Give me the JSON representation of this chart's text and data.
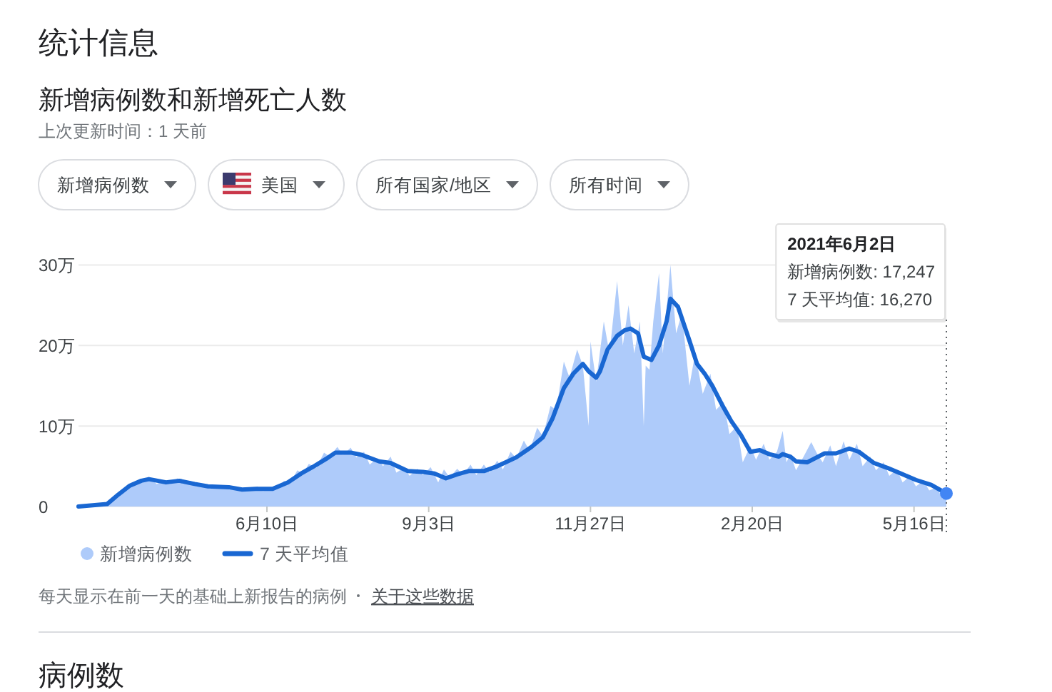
{
  "chart_data": {
    "type": "area",
    "title": "统计信息",
    "subtitle": "新增病例数和新增死亡人数",
    "series": [
      {
        "name": "新增病例数",
        "color": "#aecbfa",
        "x": [
          "2020-03-03",
          "2020-03-15",
          "2020-03-20",
          "2020-03-25",
          "2020-03-30",
          "2020-04-03",
          "2020-04-06",
          "2020-04-10",
          "2020-04-13",
          "2020-04-17",
          "2020-04-20",
          "2020-04-24",
          "2020-04-27",
          "2020-05-01",
          "2020-05-04",
          "2020-05-08",
          "2020-05-11",
          "2020-05-15",
          "2020-05-18",
          "2020-05-22",
          "2020-05-26",
          "2020-05-29",
          "2020-06-01",
          "2020-06-05",
          "2020-06-08",
          "2020-06-12",
          "2020-06-15",
          "2020-06-19",
          "2020-06-22",
          "2020-06-26",
          "2020-06-29",
          "2020-07-02",
          "2020-07-06",
          "2020-07-10",
          "2020-07-13",
          "2020-07-17",
          "2020-07-20",
          "2020-07-24",
          "2020-07-27",
          "2020-07-31",
          "2020-08-03",
          "2020-08-07",
          "2020-08-10",
          "2020-08-14",
          "2020-08-17",
          "2020-08-21",
          "2020-08-24",
          "2020-08-28",
          "2020-08-31",
          "2020-09-04",
          "2020-09-08",
          "2020-09-11",
          "2020-09-14",
          "2020-09-18",
          "2020-09-21",
          "2020-09-25",
          "2020-09-28",
          "2020-10-02",
          "2020-10-05",
          "2020-10-09",
          "2020-10-12",
          "2020-10-16",
          "2020-10-19",
          "2020-10-23",
          "2020-10-26",
          "2020-10-30",
          "2020-11-02",
          "2020-11-06",
          "2020-11-09",
          "2020-11-13",
          "2020-11-16",
          "2020-11-20",
          "2020-11-23",
          "2020-11-26",
          "2020-11-27",
          "2020-11-30",
          "2020-12-04",
          "2020-12-07",
          "2020-12-11",
          "2020-12-14",
          "2020-12-17",
          "2020-12-20",
          "2020-12-23",
          "2020-12-25",
          "2020-12-26",
          "2020-12-28",
          "2020-12-30",
          "2021-01-02",
          "2021-01-04",
          "2021-01-08",
          "2021-01-11",
          "2021-01-14",
          "2021-01-18",
          "2021-01-21",
          "2021-01-25",
          "2021-01-29",
          "2021-02-01",
          "2021-02-05",
          "2021-02-08",
          "2021-02-12",
          "2021-02-15",
          "2021-02-19",
          "2021-02-22",
          "2021-02-26",
          "2021-03-01",
          "2021-03-05",
          "2021-03-08",
          "2021-03-10",
          "2021-03-12",
          "2021-03-15",
          "2021-03-19",
          "2021-03-23",
          "2021-03-26",
          "2021-03-29",
          "2021-04-02",
          "2021-04-05",
          "2021-04-09",
          "2021-04-12",
          "2021-04-16",
          "2021-04-19",
          "2021-04-23",
          "2021-04-26",
          "2021-04-30",
          "2021-05-03",
          "2021-05-07",
          "2021-05-10",
          "2021-05-14",
          "2021-05-17",
          "2021-05-21",
          "2021-05-24",
          "2021-05-28",
          "2021-05-31",
          "2021-06-02"
        ],
        "values": [
          0,
          0.2,
          0.8,
          1.8,
          2.6,
          3.2,
          3.0,
          3.5,
          2.8,
          3.2,
          2.8,
          3.5,
          2.8,
          3.2,
          2.5,
          2.8,
          2.2,
          2.6,
          2.2,
          2.5,
          2.0,
          2.4,
          2.1,
          2.5,
          1.9,
          2.4,
          2.1,
          3.2,
          2.9,
          4.5,
          4.1,
          5.3,
          4.8,
          6.7,
          6.2,
          7.4,
          6.4,
          7.3,
          6.1,
          6.8,
          5.2,
          6.0,
          5.0,
          6.2,
          4.2,
          4.8,
          3.8,
          4.7,
          3.9,
          4.9,
          3.0,
          4.6,
          3.6,
          4.7,
          3.9,
          5.2,
          3.9,
          5.2,
          4.2,
          5.7,
          4.6,
          6.8,
          6.0,
          8.2,
          6.9,
          9.8,
          8.7,
          12.5,
          12.0,
          18.0,
          16.0,
          19.5,
          17.5,
          10.0,
          20.5,
          15.5,
          23.0,
          19.0,
          28.0,
          20.0,
          25.0,
          19.0,
          23.0,
          10.0,
          17.5,
          17.0,
          23.0,
          29.0,
          19.0,
          30.0,
          21.5,
          24.0,
          15.0,
          19.0,
          14.0,
          16.5,
          12.0,
          13.0,
          9.0,
          10.0,
          5.5,
          7.5,
          5.8,
          7.8,
          5.8,
          6.8,
          9.4,
          5.5,
          6.5,
          4.5,
          6.2,
          8.0,
          6.6,
          5.5,
          7.6,
          5.0,
          8.1,
          5.8,
          7.8,
          5.0,
          6.2,
          4.5,
          5.5,
          3.8,
          4.6,
          3.0,
          3.8,
          2.5,
          3.2,
          2.0,
          2.4,
          0.9,
          1.7247
        ]
      },
      {
        "name": "7 天平均值",
        "type": "line",
        "color": "#1967d2",
        "x": [
          "2020-03-03",
          "2020-03-18",
          "2020-03-24",
          "2020-03-30",
          "2020-04-05",
          "2020-04-09",
          "2020-04-18",
          "2020-04-25",
          "2020-05-03",
          "2020-05-10",
          "2020-05-21",
          "2020-05-28",
          "2020-06-04",
          "2020-06-13",
          "2020-06-21",
          "2020-06-28",
          "2020-07-04",
          "2020-07-11",
          "2020-07-16",
          "2020-07-24",
          "2020-07-30",
          "2020-08-08",
          "2020-08-14",
          "2020-08-23",
          "2020-08-31",
          "2020-09-06",
          "2020-09-12",
          "2020-09-18",
          "2020-09-24",
          "2020-10-02",
          "2020-10-09",
          "2020-10-19",
          "2020-10-27",
          "2020-11-02",
          "2020-11-07",
          "2020-11-13",
          "2020-11-18",
          "2020-11-23",
          "2020-11-26",
          "2020-11-30",
          "2020-12-02",
          "2020-12-06",
          "2020-12-11",
          "2020-12-15",
          "2020-12-18",
          "2020-12-22",
          "2020-12-25",
          "2020-12-29",
          "2021-01-02",
          "2021-01-06",
          "2021-01-08",
          "2021-01-12",
          "2021-01-18",
          "2021-01-22",
          "2021-01-26",
          "2021-01-30",
          "2021-02-04",
          "2021-02-09",
          "2021-02-14",
          "2021-02-19",
          "2021-02-24",
          "2021-03-01",
          "2021-03-06",
          "2021-03-08",
          "2021-03-12",
          "2021-03-15",
          "2021-03-21",
          "2021-03-25",
          "2021-03-30",
          "2021-04-05",
          "2021-04-12",
          "2021-04-17",
          "2021-04-25",
          "2021-05-02",
          "2021-05-10",
          "2021-05-17",
          "2021-05-25",
          "2021-06-02"
        ],
        "values": [
          0,
          0.3,
          1.5,
          2.6,
          3.2,
          3.4,
          3.0,
          3.2,
          2.8,
          2.5,
          2.4,
          2.1,
          2.2,
          2.2,
          3.0,
          4.1,
          4.9,
          5.9,
          6.7,
          6.7,
          6.4,
          5.6,
          5.4,
          4.4,
          4.3,
          4.1,
          3.5,
          4.0,
          4.4,
          4.4,
          5.0,
          6.1,
          7.4,
          8.6,
          10.9,
          14.7,
          16.5,
          17.7,
          16.8,
          16.0,
          16.8,
          19.5,
          21.2,
          21.9,
          22.1,
          21.5,
          18.6,
          18.2,
          20.0,
          23.0,
          25.8,
          24.8,
          20.6,
          17.7,
          16.5,
          15.0,
          12.7,
          10.6,
          8.9,
          6.8,
          7.0,
          6.5,
          6.2,
          6.5,
          6.2,
          5.6,
          5.5,
          6.0,
          6.6,
          6.6,
          7.2,
          6.8,
          5.4,
          4.8,
          4.0,
          3.3,
          2.7,
          1.627
        ]
      },
      {
        "type": "scatter",
        "color": "#4285f4",
        "x": [
          "2021-06-02"
        ],
        "values": [
          1.627
        ]
      }
    ],
    "xlim": [
      "2020-03-03",
      "2021-06-02"
    ],
    "xticks": [
      {
        "value": "2020-06-10",
        "label": "6月10日"
      },
      {
        "value": "2020-09-03",
        "label": "9月3日"
      },
      {
        "value": "2020-11-27",
        "label": "11月27日"
      },
      {
        "value": "2021-02-20",
        "label": "2月20日"
      },
      {
        "value": "2021-05-16",
        "label": "5月16日"
      }
    ],
    "ylim": [
      0,
      30
    ],
    "yticks": [
      0,
      {
        "value": 10,
        "label": "10万"
      },
      {
        "value": 20,
        "label": "20万"
      },
      {
        "value": 30,
        "label": "30万"
      }
    ],
    "grid": "y",
    "legend": "bottom left",
    "ref_lines": [
      {
        "axis": "x",
        "value": "2021-06-02",
        "line_style": "dotted",
        "color": "#5f6368"
      }
    ],
    "annotations": [
      "上次更新时间：1 天前",
      "新增病例数",
      "美国",
      "所有国家/地区",
      "所有时间",
      "每天显示在前一天的基础上新报告的病例",
      "关于这些数据",
      "病例数",
      "2021年6月2日",
      "新增病例数: 17,247",
      "7 天平均值: 16,270"
    ]
  }
}
